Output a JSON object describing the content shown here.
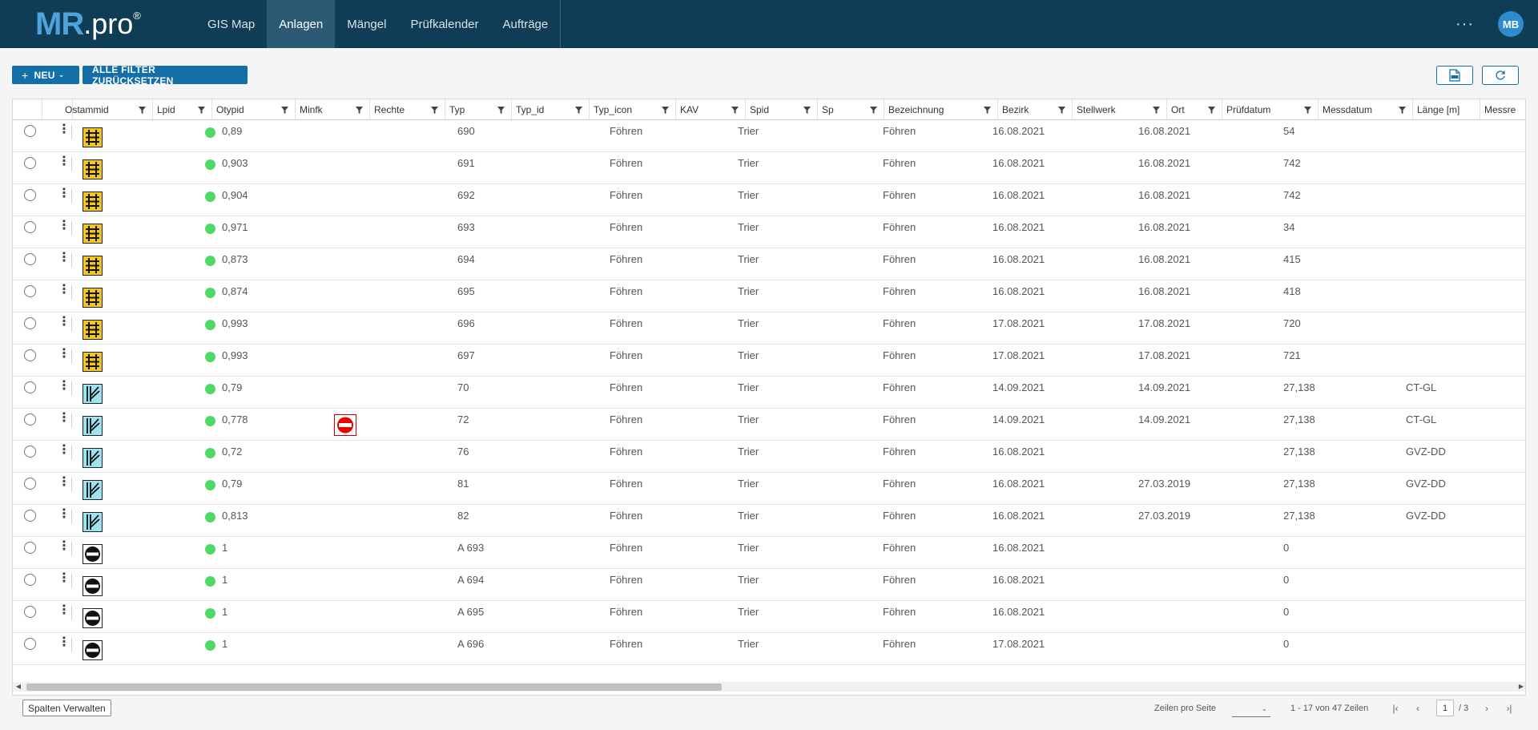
{
  "nav": {
    "logo_mr": "MR",
    "logo_pro": ".pro",
    "logo_reg": "®",
    "items": [
      {
        "label": "GIS Map",
        "active": false
      },
      {
        "label": "Anlagen",
        "active": true
      },
      {
        "label": "Mängel",
        "active": false
      },
      {
        "label": "Prüfkalender",
        "active": false
      },
      {
        "label": "Aufträge",
        "active": false
      }
    ],
    "more": "···",
    "avatar": "MB"
  },
  "toolbar": {
    "new_label": "NEU",
    "reset_label": "ALLE FILTER ZURÜCKSETZEN",
    "pdf_icon": "pdf-icon",
    "refresh_icon": "refresh-icon"
  },
  "grid": {
    "columns": [
      "Ostammid",
      "Lpid",
      "Otypid",
      "Minfk",
      "Rechte",
      "Typ",
      "Typ_id",
      "Typ_icon",
      "KAV",
      "Spid",
      "Sp",
      "Bezeichnung",
      "Bezirk",
      "Stellwerk",
      "Ort",
      "Prüfdatum",
      "Messdatum",
      "Länge [m]",
      "Messre"
    ],
    "rows": [
      {
        "icon": "railway-crossing",
        "status": "green",
        "otypid": "0,89",
        "minfk_icon": "",
        "typ": "690",
        "typ_icon": "Föhren",
        "kav": "Trier",
        "bezeichnung": "Föhren",
        "bezirk": "16.08.2021",
        "ort": "16.08.2021",
        "pruefdatum": "54",
        "laenge": ""
      },
      {
        "icon": "railway-crossing",
        "status": "green",
        "otypid": "0,903",
        "minfk_icon": "",
        "typ": "691",
        "typ_icon": "Föhren",
        "kav": "Trier",
        "bezeichnung": "Föhren",
        "bezirk": "16.08.2021",
        "ort": "16.08.2021",
        "pruefdatum": "742",
        "laenge": ""
      },
      {
        "icon": "railway-crossing",
        "status": "green",
        "otypid": "0,904",
        "minfk_icon": "",
        "typ": "692",
        "typ_icon": "Föhren",
        "kav": "Trier",
        "bezeichnung": "Föhren",
        "bezirk": "16.08.2021",
        "ort": "16.08.2021",
        "pruefdatum": "742",
        "laenge": ""
      },
      {
        "icon": "railway-crossing",
        "status": "green",
        "otypid": "0,971",
        "minfk_icon": "",
        "typ": "693",
        "typ_icon": "Föhren",
        "kav": "Trier",
        "bezeichnung": "Föhren",
        "bezirk": "16.08.2021",
        "ort": "16.08.2021",
        "pruefdatum": "34",
        "laenge": ""
      },
      {
        "icon": "railway-crossing",
        "status": "green",
        "otypid": "0,873",
        "minfk_icon": "",
        "typ": "694",
        "typ_icon": "Föhren",
        "kav": "Trier",
        "bezeichnung": "Föhren",
        "bezirk": "16.08.2021",
        "ort": "16.08.2021",
        "pruefdatum": "415",
        "laenge": ""
      },
      {
        "icon": "railway-crossing",
        "status": "green",
        "otypid": "0,874",
        "minfk_icon": "",
        "typ": "695",
        "typ_icon": "Föhren",
        "kav": "Trier",
        "bezeichnung": "Föhren",
        "bezirk": "16.08.2021",
        "ort": "16.08.2021",
        "pruefdatum": "418",
        "laenge": ""
      },
      {
        "icon": "railway-crossing",
        "status": "green",
        "otypid": "0,993",
        "minfk_icon": "",
        "typ": "696",
        "typ_icon": "Föhren",
        "kav": "Trier",
        "bezeichnung": "Föhren",
        "bezirk": "17.08.2021",
        "ort": "17.08.2021",
        "pruefdatum": "720",
        "laenge": ""
      },
      {
        "icon": "railway-crossing",
        "status": "green",
        "otypid": "0,993",
        "minfk_icon": "",
        "typ": "697",
        "typ_icon": "Föhren",
        "kav": "Trier",
        "bezeichnung": "Föhren",
        "bezirk": "17.08.2021",
        "ort": "17.08.2021",
        "pruefdatum": "721",
        "laenge": ""
      },
      {
        "icon": "switch",
        "status": "green",
        "otypid": "0,79",
        "minfk_icon": "",
        "typ": "70",
        "typ_icon": "Föhren",
        "kav": "Trier",
        "bezeichnung": "Föhren",
        "bezirk": "14.09.2021",
        "ort": "14.09.2021",
        "pruefdatum": "27,138",
        "laenge": "CT-GL"
      },
      {
        "icon": "switch",
        "status": "green",
        "otypid": "0,778",
        "minfk_icon": "no-entry",
        "typ": "72",
        "typ_icon": "Föhren",
        "kav": "Trier",
        "bezeichnung": "Föhren",
        "bezirk": "14.09.2021",
        "ort": "14.09.2021",
        "pruefdatum": "27,138",
        "laenge": "CT-GL"
      },
      {
        "icon": "switch",
        "status": "green",
        "otypid": "0,72",
        "minfk_icon": "",
        "typ": "76",
        "typ_icon": "Föhren",
        "kav": "Trier",
        "bezeichnung": "Föhren",
        "bezirk": "16.08.2021",
        "ort": "",
        "pruefdatum": "27,138",
        "laenge": "GVZ-DD"
      },
      {
        "icon": "switch",
        "status": "green",
        "otypid": "0,79",
        "minfk_icon": "",
        "typ": "81",
        "typ_icon": "Föhren",
        "kav": "Trier",
        "bezeichnung": "Föhren",
        "bezirk": "16.08.2021",
        "ort": "27.03.2019",
        "pruefdatum": "27,138",
        "laenge": "GVZ-DD"
      },
      {
        "icon": "switch",
        "status": "green",
        "otypid": "0,813",
        "minfk_icon": "",
        "typ": "82",
        "typ_icon": "Föhren",
        "kav": "Trier",
        "bezeichnung": "Föhren",
        "bezirk": "16.08.2021",
        "ort": "27.03.2019",
        "pruefdatum": "27,138",
        "laenge": "GVZ-DD"
      },
      {
        "icon": "signal",
        "status": "green",
        "otypid": "1",
        "minfk_icon": "",
        "typ": "A 693",
        "typ_icon": "Föhren",
        "kav": "Trier",
        "bezeichnung": "Föhren",
        "bezirk": "16.08.2021",
        "ort": "",
        "pruefdatum": "0",
        "laenge": ""
      },
      {
        "icon": "signal",
        "status": "green",
        "otypid": "1",
        "minfk_icon": "",
        "typ": "A 694",
        "typ_icon": "Föhren",
        "kav": "Trier",
        "bezeichnung": "Föhren",
        "bezirk": "16.08.2021",
        "ort": "",
        "pruefdatum": "0",
        "laenge": ""
      },
      {
        "icon": "signal",
        "status": "green",
        "otypid": "1",
        "minfk_icon": "",
        "typ": "A 695",
        "typ_icon": "Föhren",
        "kav": "Trier",
        "bezeichnung": "Föhren",
        "bezirk": "16.08.2021",
        "ort": "",
        "pruefdatum": "0",
        "laenge": ""
      },
      {
        "icon": "signal",
        "status": "green",
        "otypid": "1",
        "minfk_icon": "",
        "typ": "A 696",
        "typ_icon": "Föhren",
        "kav": "Trier",
        "bezeichnung": "Föhren",
        "bezirk": "17.08.2021",
        "ort": "",
        "pruefdatum": "0",
        "laenge": ""
      }
    ]
  },
  "footer": {
    "columns_button": "Spalten Verwalten",
    "rows_per_page_label": "Zeilen pro Seite",
    "range": "1 - 17 von 47 Zeilen",
    "page": "1",
    "page_total": "/ 3"
  }
}
